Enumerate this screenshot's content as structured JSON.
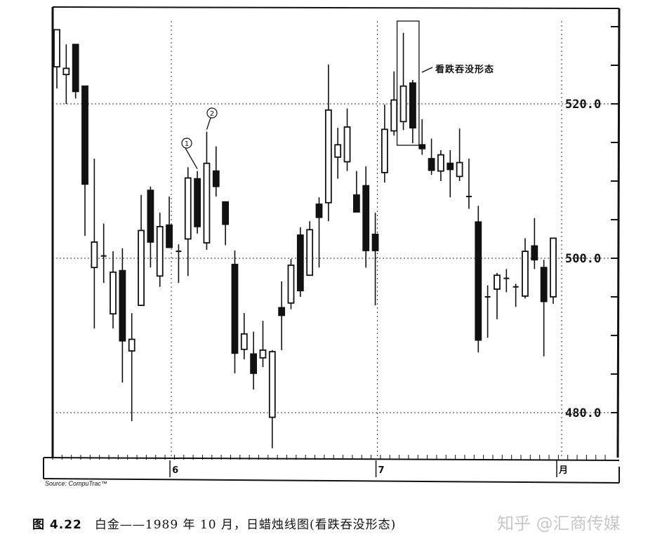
{
  "chart_data": {
    "type": "candlestick",
    "title": "",
    "ylim": [
      475,
      530
    ],
    "y_ticks": [
      "480.0",
      "500.0",
      "520.0"
    ],
    "y_tick_values": [
      480,
      500,
      520
    ],
    "x_tick_labels": [
      "6",
      "7",
      "月"
    ],
    "x_tick_index": [
      12,
      34,
      53
    ],
    "grid": true,
    "annotations": {
      "pattern_label": "看跌吞没形态",
      "marker_1": "1",
      "marker_2": "2",
      "pattern_candles": [
        37,
        38
      ],
      "marker_1_candle": 15,
      "marker_2_candle": 16
    },
    "candles": [
      {
        "o": 524.8,
        "h": 529.6,
        "l": 522.0,
        "c": 529.6
      },
      {
        "o": 523.8,
        "h": 527.7,
        "l": 520.0,
        "c": 524.6
      },
      {
        "o": 527.7,
        "h": 527.7,
        "l": 520.7,
        "c": 521.6
      },
      {
        "o": 522.3,
        "h": 522.3,
        "l": 502.9,
        "c": 509.6
      },
      {
        "o": 498.8,
        "h": 512.9,
        "l": 490.9,
        "c": 502.1
      },
      {
        "o": 500.3,
        "h": 504.5,
        "l": 496.8,
        "c": 500.3
      },
      {
        "o": 492.8,
        "h": 500.9,
        "l": 490.9,
        "c": 498.2
      },
      {
        "o": 498.4,
        "h": 501.3,
        "l": 483.9,
        "c": 489.3
      },
      {
        "o": 488.0,
        "h": 492.9,
        "l": 478.9,
        "c": 489.5
      },
      {
        "o": 493.9,
        "h": 508.2,
        "l": 493.9,
        "c": 503.6
      },
      {
        "o": 508.8,
        "h": 509.3,
        "l": 498.8,
        "c": 502.1
      },
      {
        "o": 497.7,
        "h": 505.9,
        "l": 496.3,
        "c": 504.1
      },
      {
        "o": 504.3,
        "h": 508.0,
        "l": 501.4,
        "c": 501.4
      },
      {
        "o": 500.9,
        "h": 501.8,
        "l": 496.8,
        "c": 500.9
      },
      {
        "o": 502.5,
        "h": 511.8,
        "l": 497.7,
        "c": 510.4
      },
      {
        "o": 510.3,
        "h": 511.3,
        "l": 503.2,
        "c": 504.1
      },
      {
        "o": 502.0,
        "h": 516.4,
        "l": 501.1,
        "c": 512.3
      },
      {
        "o": 511.3,
        "h": 514.5,
        "l": 508.0,
        "c": 509.3
      },
      {
        "o": 507.3,
        "h": 507.3,
        "l": 501.7,
        "c": 504.4
      },
      {
        "o": 499.2,
        "h": 501.0,
        "l": 485.1,
        "c": 487.7
      },
      {
        "o": 488.2,
        "h": 492.9,
        "l": 486.9,
        "c": 490.2
      },
      {
        "o": 487.6,
        "h": 490.5,
        "l": 483.0,
        "c": 485.1
      },
      {
        "o": 487.1,
        "h": 491.9,
        "l": 485.9,
        "c": 488.1
      },
      {
        "o": 479.4,
        "h": 488.1,
        "l": 475.4,
        "c": 487.9
      },
      {
        "o": 493.6,
        "h": 497.0,
        "l": 488.1,
        "c": 492.6
      },
      {
        "o": 494.2,
        "h": 499.9,
        "l": 493.4,
        "c": 499.1
      },
      {
        "o": 503.0,
        "h": 504.0,
        "l": 495.0,
        "c": 495.8
      },
      {
        "o": 497.8,
        "h": 504.8,
        "l": 497.8,
        "c": 503.7
      },
      {
        "o": 507.0,
        "h": 507.9,
        "l": 498.8,
        "c": 505.3
      },
      {
        "o": 507.2,
        "h": 525.1,
        "l": 504.8,
        "c": 519.2
      },
      {
        "o": 513.1,
        "h": 516.9,
        "l": 510.3,
        "c": 514.7
      },
      {
        "o": 512.5,
        "h": 519.4,
        "l": 511.3,
        "c": 517.0
      },
      {
        "o": 508.2,
        "h": 511.3,
        "l": 506.0,
        "c": 506.0
      },
      {
        "o": 509.4,
        "h": 511.9,
        "l": 498.8,
        "c": 501.0
      },
      {
        "o": 503.1,
        "h": 505.9,
        "l": 493.9,
        "c": 501.0
      },
      {
        "o": 511.1,
        "h": 519.9,
        "l": 509.8,
        "c": 516.7
      },
      {
        "o": 516.5,
        "h": 524.2,
        "l": 515.9,
        "c": 520.5
      },
      {
        "o": 517.7,
        "h": 529.2,
        "l": 516.6,
        "c": 522.3
      },
      {
        "o": 522.7,
        "h": 523.1,
        "l": 514.9,
        "c": 516.9
      },
      {
        "o": 514.7,
        "h": 518.0,
        "l": 513.4,
        "c": 514.2
      },
      {
        "o": 512.9,
        "h": 515.5,
        "l": 510.8,
        "c": 511.4
      },
      {
        "o": 511.3,
        "h": 514.0,
        "l": 510.0,
        "c": 513.4
      },
      {
        "o": 512.3,
        "h": 514.0,
        "l": 507.9,
        "c": 511.5
      },
      {
        "o": 510.6,
        "h": 516.8,
        "l": 510.0,
        "c": 512.4
      },
      {
        "o": 508.0,
        "h": 512.9,
        "l": 506.4,
        "c": 508.0
      },
      {
        "o": 504.7,
        "h": 506.8,
        "l": 487.8,
        "c": 489.4
      },
      {
        "o": 495.0,
        "h": 496.5,
        "l": 489.7,
        "c": 495.0
      },
      {
        "o": 496.0,
        "h": 498.1,
        "l": 492.1,
        "c": 497.8
      },
      {
        "o": 497.4,
        "h": 498.6,
        "l": 495.6,
        "c": 497.4
      },
      {
        "o": 496.3,
        "h": 496.7,
        "l": 493.7,
        "c": 496.3
      },
      {
        "o": 495.1,
        "h": 502.6,
        "l": 494.8,
        "c": 500.9
      },
      {
        "o": 501.6,
        "h": 505.2,
        "l": 498.6,
        "c": 499.8
      },
      {
        "o": 498.8,
        "h": 499.8,
        "l": 487.3,
        "c": 494.4
      },
      {
        "o": 495.0,
        "h": 502.6,
        "l": 494.1,
        "c": 502.6
      }
    ],
    "colors": {
      "up": "#ffffff",
      "down": "#111111",
      "outline": "#111111"
    }
  },
  "source": "Source: CompuTrac™",
  "caption": {
    "figure": "图 4.22",
    "text": "白金——1989 年 10 月，日蜡烛线图(看跌吞没形态)"
  },
  "watermark": "知乎 @汇商传媒"
}
